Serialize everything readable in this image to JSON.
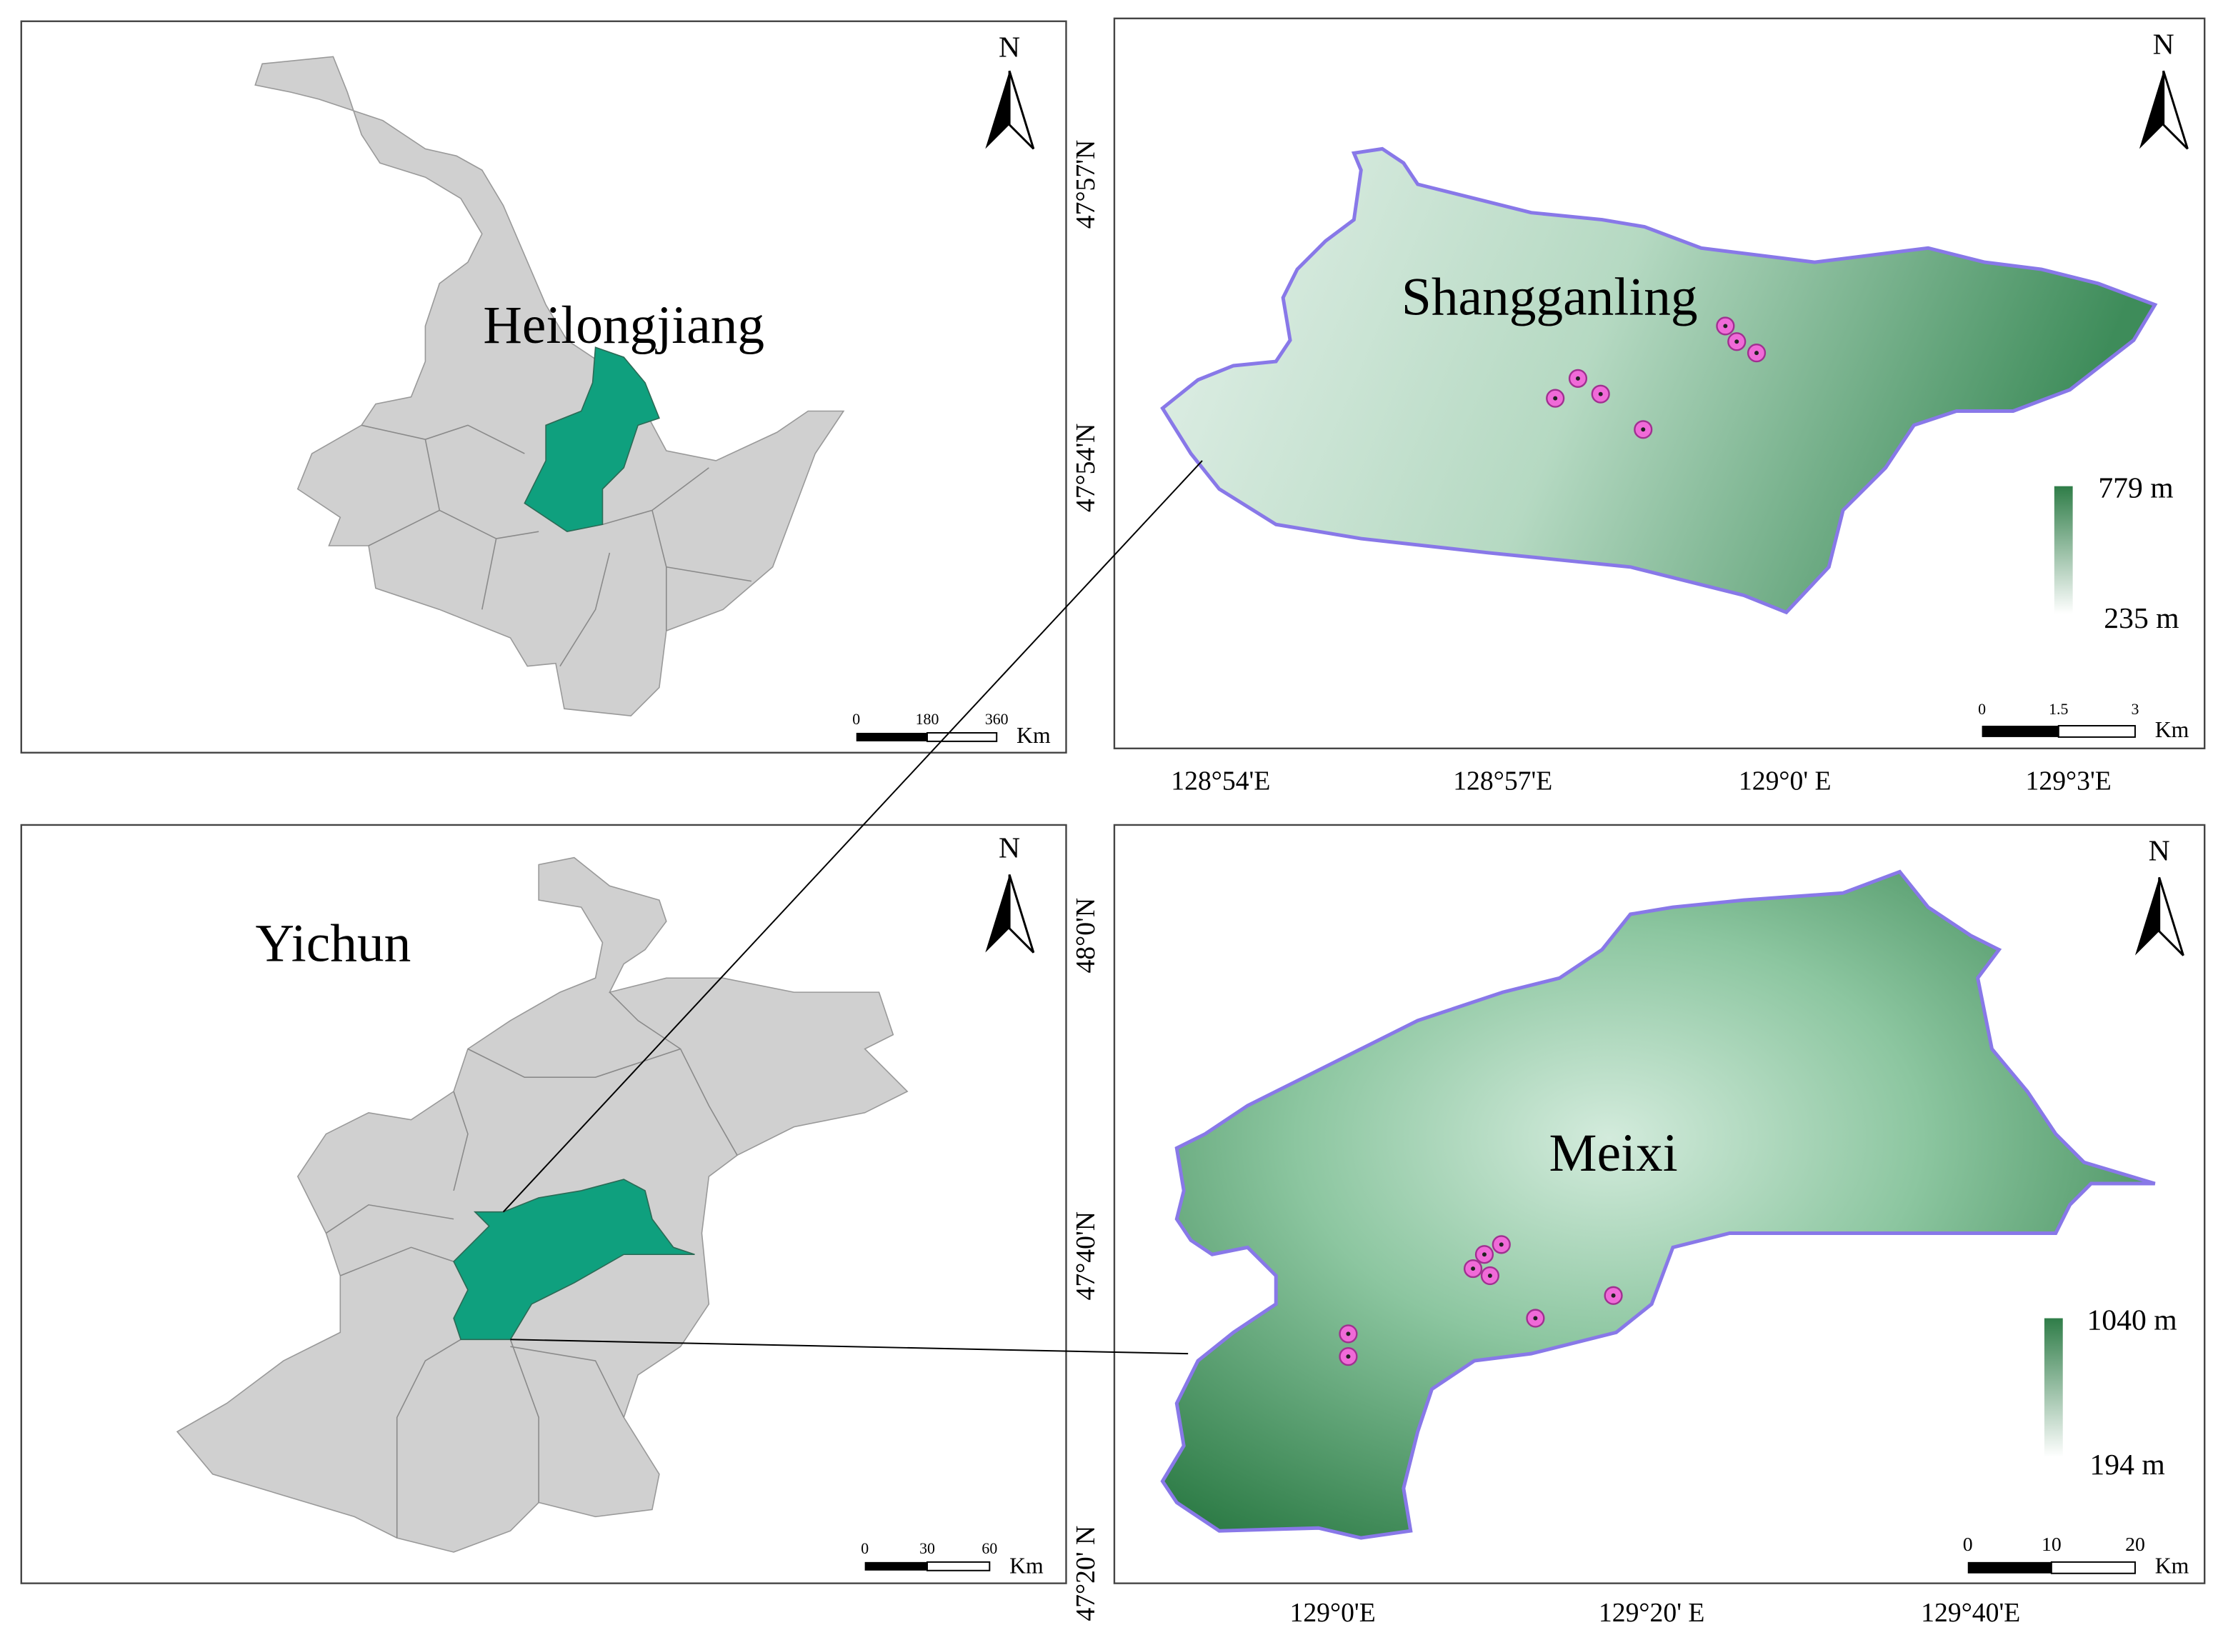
{
  "panels": [
    {
      "label": "Heilongjiang",
      "north": "N",
      "scale_bar": {
        "ticks": [
          "0",
          "180",
          "360"
        ],
        "unit": "Km"
      }
    },
    {
      "label": "Shangganling",
      "north": "N",
      "lat_labels": [
        "47°57'N",
        "47°54'N"
      ],
      "lon_labels": [
        "128°54'E",
        "128°57'E",
        "129°0' E",
        "129°3'E"
      ],
      "elevation": {
        "max": "779 m",
        "min": "235 m"
      },
      "scale_bar": {
        "ticks": [
          "0",
          "1.5",
          "3"
        ],
        "unit": "Km"
      }
    },
    {
      "label": "Yichun",
      "north": "N",
      "scale_bar": {
        "ticks": [
          "0",
          "30",
          "60"
        ],
        "unit": "Km"
      }
    },
    {
      "label": "Meixi",
      "north": "N",
      "lat_labels": [
        "48°0'N",
        "47°40'N",
        "47°20' N"
      ],
      "lon_labels": [
        "129°0'E",
        "129°20' E",
        "129°40'E"
      ],
      "elevation": {
        "max": "1040 m",
        "min": "194 m"
      },
      "scale_bar": {
        "ticks": [
          "0",
          "10",
          "20"
        ],
        "unit": "Km"
      }
    }
  ]
}
